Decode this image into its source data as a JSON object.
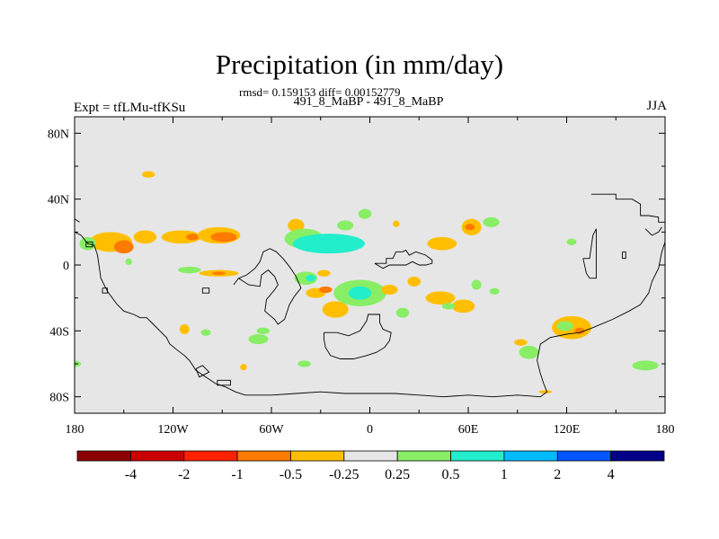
{
  "chart_data": {
    "type": "heatmap",
    "title": "Precipitation (in mm/day)",
    "stats_line": "rmsd= 0.159153 diff= 0.00152779",
    "subtitle": "491_8_MaBP - 491_8_MaBP",
    "left_label": "Expt = tfLMu-tfKSu",
    "right_label": "JJA",
    "projection": "cylindrical equidistant",
    "xlim": [
      -180,
      180
    ],
    "ylim": [
      -90,
      90
    ],
    "y_ticks": [
      {
        "value": 80,
        "label": "80N"
      },
      {
        "value": 40,
        "label": "40N"
      },
      {
        "value": 0,
        "label": "0"
      },
      {
        "value": -40,
        "label": "40S"
      },
      {
        "value": -80,
        "label": "80S"
      }
    ],
    "x_ticks": [
      {
        "value": -180,
        "label": "180"
      },
      {
        "value": -120,
        "label": "120W"
      },
      {
        "value": -60,
        "label": "60W"
      },
      {
        "value": 0,
        "label": "0"
      },
      {
        "value": 60,
        "label": "60E"
      },
      {
        "value": 120,
        "label": "120E"
      },
      {
        "value": 180,
        "label": "180"
      }
    ],
    "colorbar": {
      "colors": [
        "#8b0000",
        "#cc0000",
        "#ff2200",
        "#ff7a00",
        "#ffbf00",
        "#e6e6e6",
        "#88ee66",
        "#22eecc",
        "#00bbff",
        "#0055ff",
        "#000088"
      ],
      "labels": [
        "-4",
        "-2",
        "-1",
        "-0.5",
        "-0.25",
        "0.25",
        "0.5",
        "1",
        "2",
        "4"
      ]
    },
    "regions": [
      {
        "lon": -158,
        "lat": 14,
        "rlon": 13,
        "rlat": 6,
        "level": 4
      },
      {
        "lon": -150,
        "lat": 11,
        "rlon": 6,
        "rlat": 4,
        "level": 3
      },
      {
        "lon": -137,
        "lat": 17,
        "rlon": 7,
        "rlat": 4,
        "level": 4
      },
      {
        "lon": -115,
        "lat": 17,
        "rlon": 12,
        "rlat": 4,
        "level": 4
      },
      {
        "lon": -108,
        "lat": 17,
        "rlon": 4,
        "rlat": 2,
        "level": 3
      },
      {
        "lon": -92,
        "lat": 18,
        "rlon": 13,
        "rlat": 5,
        "level": 4
      },
      {
        "lon": -89,
        "lat": 17,
        "rlon": 8,
        "rlat": 3,
        "level": 3
      },
      {
        "lon": -172,
        "lat": 13,
        "rlon": 5,
        "rlat": 4,
        "level": 6
      },
      {
        "lon": -92,
        "lat": -5,
        "rlon": 12,
        "rlat": 2,
        "level": 4
      },
      {
        "lon": -92,
        "lat": -5,
        "rlon": 4,
        "rlat": 1,
        "level": 3
      },
      {
        "lon": -110,
        "lat": -3,
        "rlon": 7,
        "rlat": 2,
        "level": 6
      },
      {
        "lon": -45,
        "lat": 24,
        "rlon": 5,
        "rlat": 4,
        "level": 4
      },
      {
        "lon": -40,
        "lat": 16,
        "rlon": 12,
        "rlat": 6,
        "level": 6
      },
      {
        "lon": -25,
        "lat": 13,
        "rlon": 22,
        "rlat": 6,
        "level": 7
      },
      {
        "lon": -3,
        "lat": 31,
        "rlon": 4,
        "rlat": 3,
        "level": 6
      },
      {
        "lon": -15,
        "lat": 24,
        "rlon": 5,
        "rlat": 3,
        "level": 6
      },
      {
        "lon": -39,
        "lat": -8,
        "rlon": 7,
        "rlat": 4,
        "level": 6
      },
      {
        "lon": -36,
        "lat": -8,
        "rlon": 3,
        "rlat": 2,
        "level": 7
      },
      {
        "lon": -28,
        "lat": -5,
        "rlon": 4,
        "rlat": 2,
        "level": 4
      },
      {
        "lon": -33,
        "lat": -17,
        "rlon": 6,
        "rlat": 3,
        "level": 4
      },
      {
        "lon": -27,
        "lat": -15,
        "rlon": 4,
        "rlat": 2,
        "level": 3
      },
      {
        "lon": -21,
        "lat": -27,
        "rlon": 8,
        "rlat": 5,
        "level": 4
      },
      {
        "lon": -6,
        "lat": -17,
        "rlon": 16,
        "rlat": 8,
        "level": 6
      },
      {
        "lon": -6,
        "lat": -17,
        "rlon": 7,
        "rlat": 4,
        "level": 7
      },
      {
        "lon": 12,
        "lat": -15,
        "rlon": 5,
        "rlat": 3,
        "level": 4
      },
      {
        "lon": 20,
        "lat": -29,
        "rlon": 4,
        "rlat": 3,
        "level": 6
      },
      {
        "lon": 27,
        "lat": -10,
        "rlon": 4,
        "rlat": 3,
        "level": 4
      },
      {
        "lon": 44,
        "lat": 13,
        "rlon": 9,
        "rlat": 4,
        "level": 4
      },
      {
        "lon": 43,
        "lat": -20,
        "rlon": 9,
        "rlat": 4,
        "level": 4
      },
      {
        "lon": 62,
        "lat": 23,
        "rlon": 6,
        "rlat": 5,
        "level": 4
      },
      {
        "lon": 61,
        "lat": 23,
        "rlon": 3,
        "rlat": 2,
        "level": 3
      },
      {
        "lon": 74,
        "lat": 26,
        "rlon": 5,
        "rlat": 3,
        "level": 6
      },
      {
        "lon": 57,
        "lat": -25,
        "rlon": 7,
        "rlat": 4,
        "level": 4
      },
      {
        "lon": 65,
        "lat": -12,
        "rlon": 3,
        "rlat": 3,
        "level": 6
      },
      {
        "lon": 48,
        "lat": -25,
        "rlon": 4,
        "rlat": 2,
        "level": 6
      },
      {
        "lon": 76,
        "lat": -16,
        "rlon": 3,
        "rlat": 2,
        "level": 6
      },
      {
        "lon": 123,
        "lat": -38,
        "rlon": 12,
        "rlat": 7,
        "level": 4
      },
      {
        "lon": 119,
        "lat": -37,
        "rlon": 5,
        "rlat": 3,
        "level": 6
      },
      {
        "lon": 128,
        "lat": -40,
        "rlon": 3,
        "rlat": 2,
        "level": 3
      },
      {
        "lon": 97,
        "lat": -53,
        "rlon": 6,
        "rlat": 4,
        "level": 6
      },
      {
        "lon": 92,
        "lat": -47,
        "rlon": 4,
        "rlat": 2,
        "level": 4
      },
      {
        "lon": 168,
        "lat": -61,
        "rlon": 8,
        "rlat": 3,
        "level": 6
      },
      {
        "lon": -68,
        "lat": -45,
        "rlon": 6,
        "rlat": 3,
        "level": 6
      },
      {
        "lon": -65,
        "lat": -40,
        "rlon": 4,
        "rlat": 2,
        "level": 6
      },
      {
        "lon": -113,
        "lat": -39,
        "rlon": 3,
        "rlat": 3,
        "level": 4
      },
      {
        "lon": -100,
        "lat": -41,
        "rlon": 3,
        "rlat": 2,
        "level": 6
      },
      {
        "lon": -77,
        "lat": -62,
        "rlon": 2,
        "rlat": 2,
        "level": 4
      },
      {
        "lon": -40,
        "lat": -60,
        "rlon": 4,
        "rlat": 2,
        "level": 6
      },
      {
        "lon": 107,
        "lat": -77,
        "rlon": 4,
        "rlat": 1,
        "level": 4
      },
      {
        "lon": 123,
        "lat": 14,
        "rlon": 3,
        "rlat": 2,
        "level": 6
      },
      {
        "lon": -180,
        "lat": -60,
        "rlon": 4,
        "rlat": 2,
        "level": 6
      },
      {
        "lon": -147,
        "lat": 2,
        "rlon": 2,
        "rlat": 2,
        "level": 6
      },
      {
        "lon": -135,
        "lat": 55,
        "rlon": 4,
        "rlat": 2,
        "level": 4
      },
      {
        "lon": 16,
        "lat": 25,
        "rlon": 2,
        "rlat": 2,
        "level": 4
      }
    ],
    "coastlines": [
      [
        [
          -180,
          20
        ],
        [
          -176,
          18
        ],
        [
          -172,
          13
        ],
        [
          -168,
          12
        ],
        [
          -166,
          6
        ],
        [
          -164,
          -8
        ],
        [
          -160,
          -16
        ],
        [
          -154,
          -24
        ],
        [
          -150,
          -28
        ],
        [
          -144,
          -30
        ],
        [
          -140,
          -32
        ],
        [
          -136,
          -32
        ],
        [
          -132,
          -36
        ],
        [
          -128,
          -40
        ],
        [
          -124,
          -44
        ],
        [
          -122,
          -48
        ],
        [
          -117,
          -52
        ],
        [
          -113,
          -55
        ],
        [
          -110,
          -58
        ],
        [
          -106,
          -64
        ],
        [
          -100,
          -68
        ],
        [
          -94,
          -72
        ],
        [
          -88,
          -74
        ],
        [
          -82,
          -77
        ],
        [
          -76,
          -79
        ],
        [
          -60,
          -79
        ],
        [
          -45,
          -78
        ],
        [
          -30,
          -77
        ],
        [
          -15,
          -78
        ],
        [
          0,
          -78
        ],
        [
          15,
          -78
        ],
        [
          30,
          -79
        ],
        [
          45,
          -80
        ],
        [
          60,
          -79
        ],
        [
          75,
          -80
        ],
        [
          90,
          -79
        ],
        [
          104,
          -80
        ],
        [
          108,
          -77
        ],
        [
          106,
          -72
        ],
        [
          104,
          -66
        ],
        [
          102,
          -58
        ],
        [
          104,
          -48
        ],
        [
          110,
          -44
        ],
        [
          120,
          -42
        ],
        [
          128,
          -41
        ],
        [
          136,
          -38
        ],
        [
          148,
          -33
        ],
        [
          158,
          -28
        ],
        [
          165,
          -24
        ],
        [
          170,
          -17
        ],
        [
          172,
          -10
        ],
        [
          176,
          -2
        ],
        [
          178,
          8
        ],
        [
          180,
          14
        ]
      ],
      [
        [
          -180,
          28
        ],
        [
          -177,
          26
        ]
      ],
      [
        [
          -173,
          14
        ],
        [
          -169,
          14
        ],
        [
          -169,
          11
        ],
        [
          -173,
          11
        ],
        [
          -173,
          14
        ]
      ],
      [
        [
          -83,
          -12
        ],
        [
          -80,
          -8
        ],
        [
          -74,
          -12
        ],
        [
          -67,
          -13
        ],
        [
          -66,
          -6
        ],
        [
          -62,
          -3
        ],
        [
          -58,
          -7
        ],
        [
          -56,
          -12
        ],
        [
          -58,
          -15
        ],
        [
          -63,
          -21
        ],
        [
          -64,
          -28
        ],
        [
          -58,
          -33
        ],
        [
          -56,
          -36
        ],
        [
          -52,
          -33
        ],
        [
          -49,
          -24
        ],
        [
          -46,
          -19
        ],
        [
          -42,
          -14
        ],
        [
          -45,
          -7
        ],
        [
          -49,
          -1
        ],
        [
          -53,
          4
        ],
        [
          -57,
          8
        ],
        [
          -61,
          10
        ],
        [
          -65,
          8
        ],
        [
          -67,
          2
        ],
        [
          -70,
          -2
        ],
        [
          -75,
          -6
        ],
        [
          -80,
          -8
        ],
        [
          -83,
          -12
        ]
      ],
      [
        [
          -102,
          -14
        ],
        [
          -98,
          -14
        ],
        [
          -98,
          -17
        ],
        [
          -102,
          -17
        ],
        [
          -102,
          -14
        ]
      ],
      [
        [
          -28,
          -41
        ],
        [
          -20,
          -41
        ],
        [
          -13,
          -43
        ],
        [
          -6,
          -40
        ],
        [
          -2,
          -34
        ],
        [
          -1,
          -30
        ],
        [
          6,
          -30
        ],
        [
          6,
          -35
        ],
        [
          8,
          -39
        ],
        [
          13,
          -41
        ],
        [
          12,
          -46
        ],
        [
          9,
          -50
        ],
        [
          4,
          -53
        ],
        [
          -2,
          -55
        ],
        [
          -10,
          -57
        ],
        [
          -18,
          -57
        ],
        [
          -24,
          -55
        ],
        [
          -27,
          -50
        ],
        [
          -28,
          -45
        ],
        [
          -28,
          -41
        ]
      ],
      [
        [
          3,
          1
        ],
        [
          10,
          1
        ],
        [
          10,
          4
        ],
        [
          14,
          4
        ],
        [
          16,
          8
        ],
        [
          20,
          8
        ],
        [
          22,
          9
        ],
        [
          24,
          6
        ],
        [
          28,
          8
        ],
        [
          34,
          6
        ],
        [
          38,
          3
        ],
        [
          38,
          1
        ],
        [
          34,
          0
        ],
        [
          30,
          0
        ],
        [
          26,
          2
        ],
        [
          22,
          0
        ],
        [
          16,
          0
        ],
        [
          12,
          0
        ],
        [
          8,
          -2
        ],
        [
          3,
          1
        ]
      ],
      [
        [
          -106,
          -63
        ],
        [
          -102,
          -61
        ],
        [
          -98,
          -65
        ],
        [
          -104,
          -68
        ],
        [
          -106,
          -63
        ]
      ],
      [
        [
          -93,
          -70
        ],
        [
          -85,
          -70
        ],
        [
          -85,
          -73
        ],
        [
          -93,
          -73
        ],
        [
          -93,
          -70
        ]
      ],
      [
        [
          -163,
          -14
        ],
        [
          -160,
          -14
        ],
        [
          -160,
          -17
        ],
        [
          -163,
          -17
        ],
        [
          -163,
          -14
        ]
      ],
      [
        [
          135,
          43
        ],
        [
          150,
          43
        ],
        [
          150,
          40
        ],
        [
          160,
          40
        ],
        [
          165,
          37
        ],
        [
          165,
          30
        ],
        [
          170,
          30
        ],
        [
          176,
          29
        ],
        [
          176,
          26
        ],
        [
          180,
          26
        ]
      ],
      [
        [
          168,
          22
        ],
        [
          172,
          18
        ],
        [
          176,
          20
        ],
        [
          178,
          23
        ]
      ],
      [
        [
          130,
          4
        ],
        [
          134,
          4
        ],
        [
          136,
          18
        ],
        [
          138,
          22
        ],
        [
          138,
          -8
        ],
        [
          134,
          -8
        ],
        [
          132,
          -5
        ],
        [
          130,
          4
        ]
      ],
      [
        [
          154,
          8
        ],
        [
          156,
          8
        ],
        [
          156,
          4
        ],
        [
          154,
          4
        ],
        [
          154,
          8
        ]
      ]
    ]
  }
}
